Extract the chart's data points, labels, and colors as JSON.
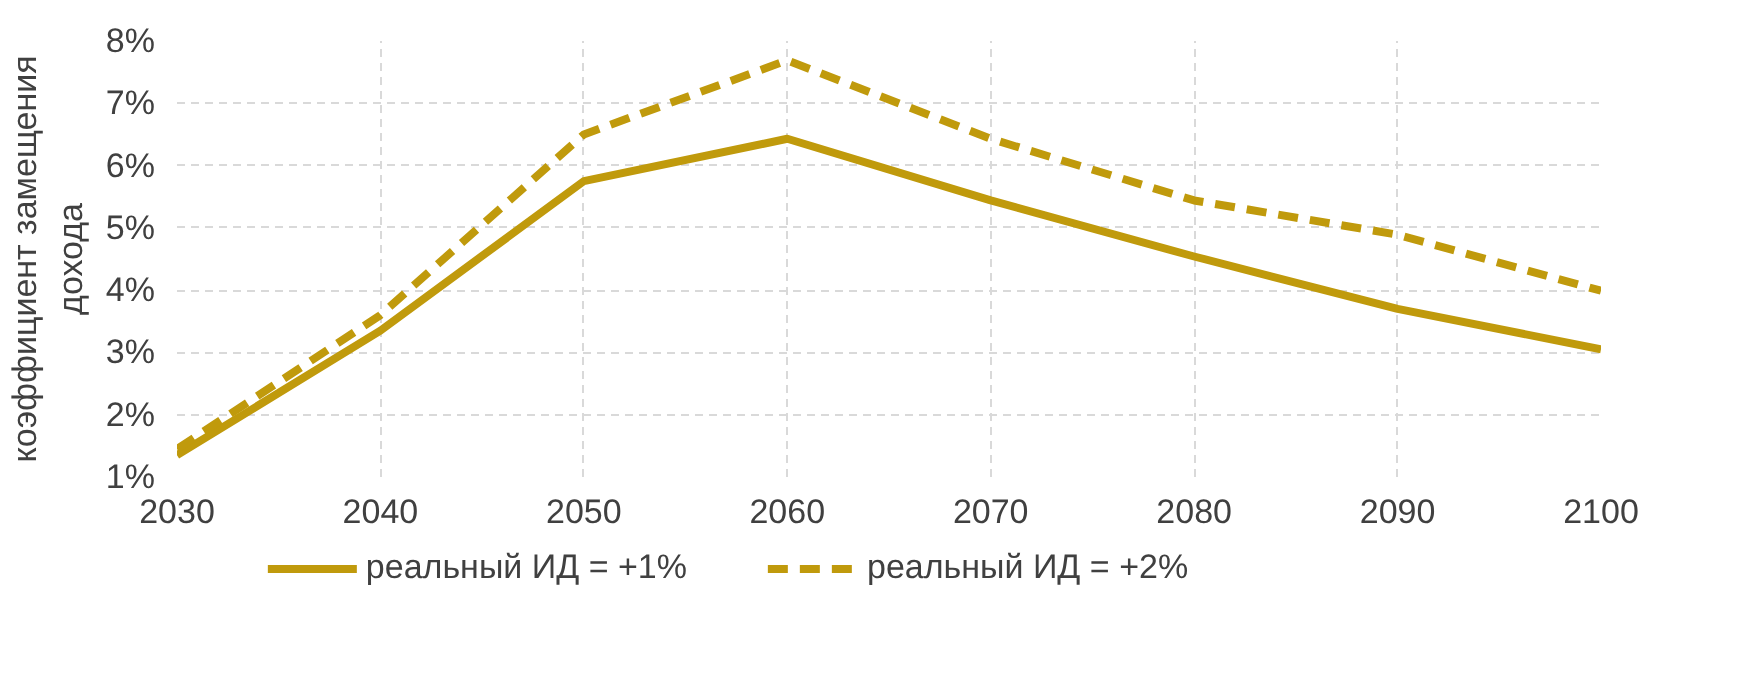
{
  "chart_data": {
    "type": "line",
    "ylabel": "коэффициент замещения\nдохода",
    "x": [
      2030,
      2040,
      2050,
      2060,
      2070,
      2080,
      2090,
      2100
    ],
    "series": [
      {
        "name": "реальный ИД = +1%",
        "color": "#c09a0c",
        "line_style": "solid",
        "values": [
          1.35,
          3.35,
          5.75,
          6.43,
          5.44,
          4.54,
          3.7,
          3.05
        ]
      },
      {
        "name": "реальный ИД = +2%",
        "color": "#c09a0c",
        "line_style": "dashed",
        "values": [
          1.45,
          3.6,
          6.5,
          7.69,
          6.43,
          5.44,
          4.89,
          3.99
        ]
      }
    ],
    "xlim": [
      2030,
      2100
    ],
    "xticks": [
      2030,
      2040,
      2050,
      2060,
      2070,
      2080,
      2090,
      2100
    ],
    "ylim": [
      1,
      8
    ],
    "yticks": [
      {
        "value": 1,
        "label": "1%"
      },
      {
        "value": 2,
        "label": "2%"
      },
      {
        "value": 3,
        "label": "3%"
      },
      {
        "value": 4,
        "label": "4%"
      },
      {
        "value": 5,
        "label": "5%"
      },
      {
        "value": 6,
        "label": "6%"
      },
      {
        "value": 7,
        "label": "7%"
      },
      {
        "value": 8,
        "label": "8%"
      }
    ],
    "grid": true,
    "legend": "bottom",
    "marker": "none"
  }
}
